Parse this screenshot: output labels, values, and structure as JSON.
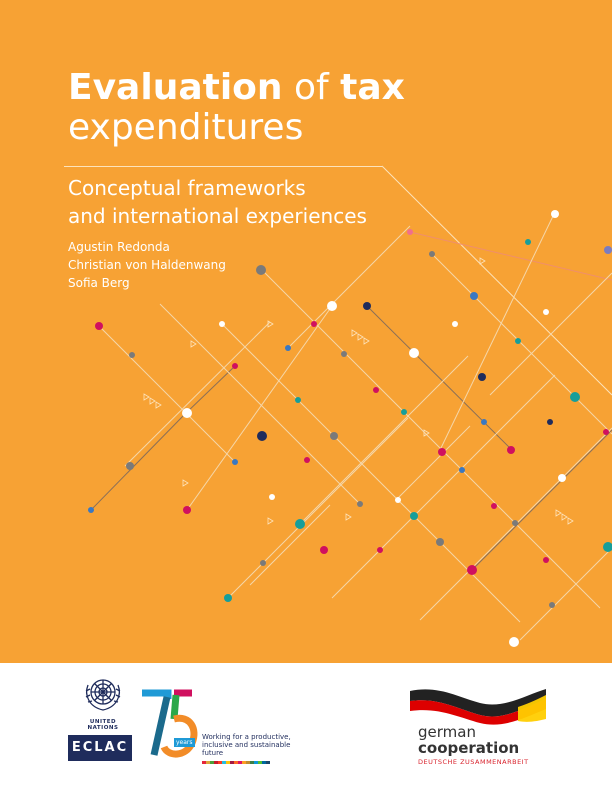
{
  "title": {
    "bold_1": "Evaluation",
    "normal_1": " of ",
    "bold_2": "tax",
    "line_2": "expenditures"
  },
  "subtitle": {
    "line_1": "Conceptual frameworks",
    "line_2": "and international experiences"
  },
  "authors": [
    "Agustin Redonda",
    "Christian von Haldenwang",
    "Sofia Berg"
  ],
  "colors": {
    "cover": "#f7a234",
    "navy": "#1f2c5c",
    "magenta": "#d0105f",
    "teal": "#169e9a",
    "blue": "#3a78c2",
    "grey": "#7a7a7a",
    "white": "#ffffff"
  },
  "footer": {
    "un_label": "UNITED NATIONS",
    "eclac_label": "ECLAC",
    "anniversary": {
      "years_label": "years",
      "tagline": "Working for a productive, inclusive and sustainable future"
    },
    "german": {
      "line_1": "german",
      "line_2": "cooperation",
      "line_3": "DEUTSCHE ZUSAMMENARBEIT"
    }
  }
}
